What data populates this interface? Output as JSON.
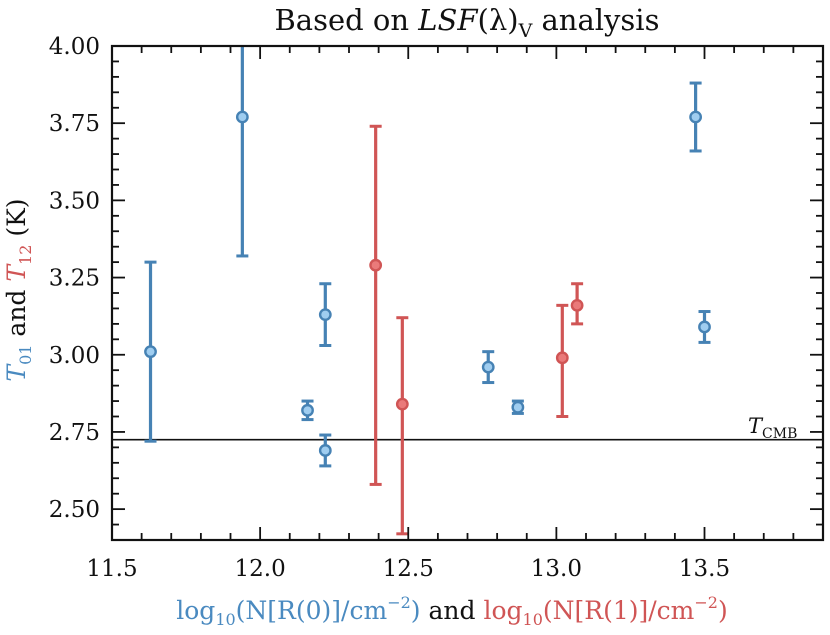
{
  "chart_data": {
    "type": "scatter",
    "title": {
      "prefix": "Based on ",
      "math": "LSF",
      "paren": "(λ)",
      "sub": "V",
      "suffix": " analysis"
    },
    "xlabel": {
      "blue": {
        "prefix": "log",
        "sub": "10",
        "body": "(N[R(0)]/cm",
        "sup": "−2",
        "close": ")"
      },
      "and": " and ",
      "red": {
        "prefix": "log",
        "sub": "10",
        "body": "(N[R(1)]/cm",
        "sup": "−2",
        "close": ")"
      }
    },
    "ylabel": {
      "t01": "T",
      "t01_sub": "01",
      "and": " and ",
      "t12": "T",
      "t12_sub": "12",
      "unit": " (K)"
    },
    "xlim": [
      11.5,
      13.9
    ],
    "ylim": [
      2.4,
      4.0
    ],
    "x_ticks": [
      11.5,
      12.0,
      12.5,
      13.0,
      13.5
    ],
    "x_tick_labels": [
      "11.5",
      "12.0",
      "12.5",
      "13.0",
      "13.5"
    ],
    "y_ticks": [
      2.5,
      2.75,
      3.0,
      3.25,
      3.5,
      3.75,
      4.0
    ],
    "y_tick_labels": [
      "2.50",
      "2.75",
      "3.00",
      "3.25",
      "3.50",
      "3.75",
      "4.00"
    ],
    "reference_line": {
      "y": 2.725,
      "label": "T",
      "label_sub": "CMB"
    },
    "series": [
      {
        "name": "T01",
        "color": "#4682b4",
        "fill": "#9fcdf0",
        "points": [
          {
            "x": 11.63,
            "y": 3.01,
            "err_low": 2.72,
            "err_high": 3.3
          },
          {
            "x": 11.94,
            "y": 3.77,
            "err_low": 3.32,
            "err_high": 4.05
          },
          {
            "x": 12.16,
            "y": 2.82,
            "err_low": 2.79,
            "err_high": 2.85
          },
          {
            "x": 12.22,
            "y": 3.13,
            "err_low": 3.03,
            "err_high": 3.23
          },
          {
            "x": 12.22,
            "y": 2.69,
            "err_low": 2.64,
            "err_high": 2.74
          },
          {
            "x": 12.77,
            "y": 2.96,
            "err_low": 2.91,
            "err_high": 3.01
          },
          {
            "x": 12.87,
            "y": 2.83,
            "err_low": 2.81,
            "err_high": 2.85
          },
          {
            "x": 13.47,
            "y": 3.77,
            "err_low": 3.66,
            "err_high": 3.88
          },
          {
            "x": 13.5,
            "y": 3.09,
            "err_low": 3.04,
            "err_high": 3.14
          }
        ]
      },
      {
        "name": "T12",
        "color": "#d05555",
        "fill": "#ea7a7a",
        "points": [
          {
            "x": 12.39,
            "y": 3.29,
            "err_low": 2.58,
            "err_high": 3.74
          },
          {
            "x": 12.48,
            "y": 2.84,
            "err_low": 2.42,
            "err_high": 3.12
          },
          {
            "x": 13.02,
            "y": 2.99,
            "err_low": 2.8,
            "err_high": 3.16
          },
          {
            "x": 13.07,
            "y": 3.16,
            "err_low": 3.1,
            "err_high": 3.23
          }
        ]
      }
    ]
  }
}
